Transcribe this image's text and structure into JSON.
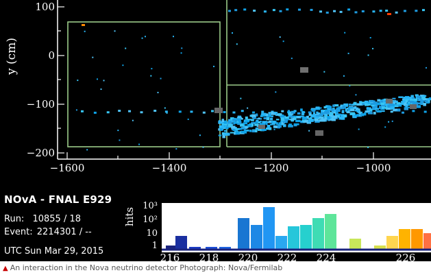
{
  "display": {
    "experiment": "NOvA - FNAL E929",
    "run_label": "Run:",
    "run_value": "10855 / 18",
    "event_label": "Event:",
    "event_value": "2214301 / --",
    "timestamp": "UTC Sun Mar 29, 2015"
  },
  "detector_view": {
    "y_axis_label": "y (cm)",
    "y_ticks": [
      "100",
      "0",
      "−100",
      "−200"
    ],
    "x_ticks": [
      "−1600",
      "−1400",
      "−1200",
      "−1000"
    ]
  },
  "hits_histogram": {
    "y_axis_label": "hits",
    "y_ticks": [
      "10³",
      "10²",
      "10",
      "1"
    ],
    "x_ticks": [
      "216",
      "218",
      "220",
      "222",
      "224",
      "226"
    ]
  },
  "caption": {
    "text": "An interaction in the Nova neutrino detector Photograph: Nova/Fermilab"
  },
  "colors": {
    "background": "#000000",
    "hit_cyan": "#29b6f6",
    "outline_green": "#9ccc8a",
    "caption_triangle": "#c70000"
  }
}
